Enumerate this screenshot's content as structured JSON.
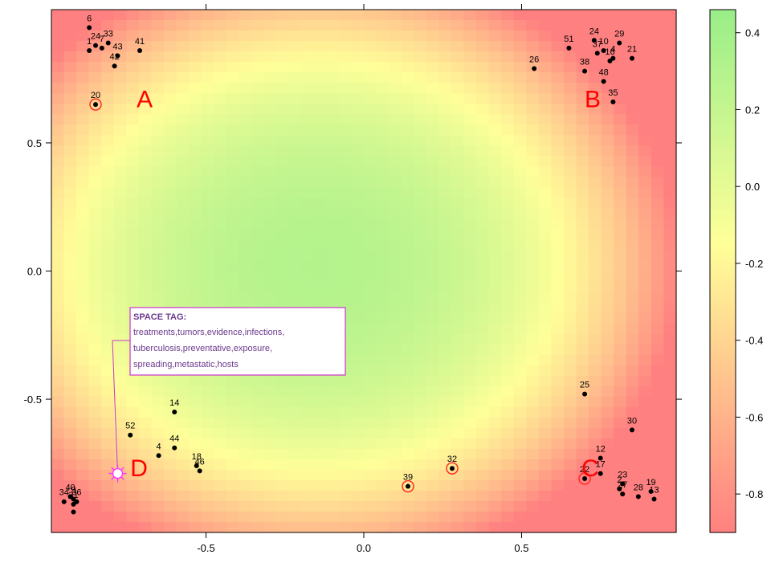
{
  "chart_data": {
    "type": "scatter",
    "xlim": [
      -0.99,
      0.99
    ],
    "ylim": [
      -1.02,
      1.02
    ],
    "x_ticks": [
      -0.5,
      0.0,
      0.5
    ],
    "x_tick_labels": [
      "-0.5",
      "0.0",
      "0.5"
    ],
    "y_ticks": [
      0.5,
      0.0,
      -0.5
    ],
    "y_tick_labels": [
      "0.5",
      "0.0",
      "-0.5"
    ],
    "grid": false,
    "background": "heatmap",
    "colorbar": {
      "ticks": [
        0.4,
        0.2,
        0.0,
        -0.2,
        -0.4,
        -0.6,
        -0.8
      ],
      "tick_labels": [
        "0.4",
        "0.2",
        "0.0",
        "-0.2",
        "-0.4",
        "-0.6",
        "-0.8"
      ],
      "range": [
        -0.9,
        0.46
      ],
      "colors": {
        "high": "#99ee88",
        "mid": "#ffff99",
        "low": "#ff8080"
      }
    },
    "points": [
      {
        "label": "6",
        "x": -0.87,
        "y": 0.95
      },
      {
        "label": "1",
        "x": -0.87,
        "y": 0.86
      },
      {
        "label": "24",
        "x": -0.85,
        "y": 0.88
      },
      {
        "label": "7",
        "x": -0.83,
        "y": 0.87
      },
      {
        "label": "33",
        "x": -0.81,
        "y": 0.89
      },
      {
        "label": "43",
        "x": -0.78,
        "y": 0.84
      },
      {
        "label": "41",
        "x": -0.71,
        "y": 0.86
      },
      {
        "label": "42",
        "x": -0.79,
        "y": 0.8
      },
      {
        "label": "20",
        "x": -0.85,
        "y": 0.65,
        "circled": true
      },
      {
        "label": "51",
        "x": 0.65,
        "y": 0.87
      },
      {
        "label": "24",
        "x": 0.73,
        "y": 0.9
      },
      {
        "label": "29",
        "x": 0.81,
        "y": 0.89
      },
      {
        "label": "37",
        "x": 0.74,
        "y": 0.85
      },
      {
        "label": "10",
        "x": 0.76,
        "y": 0.86
      },
      {
        "label": "16",
        "x": 0.78,
        "y": 0.82
      },
      {
        "label": "4",
        "x": 0.79,
        "y": 0.83
      },
      {
        "label": "21",
        "x": 0.85,
        "y": 0.83
      },
      {
        "label": "26",
        "x": 0.54,
        "y": 0.79
      },
      {
        "label": "38",
        "x": 0.7,
        "y": 0.78
      },
      {
        "label": "48",
        "x": 0.76,
        "y": 0.74
      },
      {
        "label": "35",
        "x": 0.79,
        "y": 0.66
      },
      {
        "label": "25",
        "x": 0.7,
        "y": -0.48
      },
      {
        "label": "30",
        "x": 0.85,
        "y": -0.62
      },
      {
        "label": "12",
        "x": 0.75,
        "y": -0.73
      },
      {
        "label": "17",
        "x": 0.75,
        "y": -0.79
      },
      {
        "label": "22",
        "x": 0.7,
        "y": -0.81,
        "circled": true
      },
      {
        "label": "23",
        "x": 0.82,
        "y": -0.83
      },
      {
        "label": "2",
        "x": 0.81,
        "y": -0.85
      },
      {
        "label": "27",
        "x": 0.82,
        "y": -0.87
      },
      {
        "label": "28",
        "x": 0.87,
        "y": -0.88
      },
      {
        "label": "19",
        "x": 0.91,
        "y": -0.86
      },
      {
        "label": "13",
        "x": 0.92,
        "y": -0.89
      },
      {
        "label": "32",
        "x": 0.28,
        "y": -0.77,
        "circled": true
      },
      {
        "label": "39",
        "x": 0.14,
        "y": -0.84,
        "circled": true
      },
      {
        "label": "14",
        "x": -0.6,
        "y": -0.55
      },
      {
        "label": "52",
        "x": -0.74,
        "y": -0.64
      },
      {
        "label": "44",
        "x": -0.6,
        "y": -0.69
      },
      {
        "label": "4",
        "x": -0.65,
        "y": -0.72
      },
      {
        "label": "18",
        "x": -0.53,
        "y": -0.76
      },
      {
        "label": "46",
        "x": -0.52,
        "y": -0.78
      },
      {
        "label": "40",
        "x": -0.93,
        "y": -0.88
      },
      {
        "label": "9",
        "x": -0.92,
        "y": -0.89
      },
      {
        "label": "34",
        "x": -0.95,
        "y": -0.9
      },
      {
        "label": "36",
        "x": -0.91,
        "y": -0.9
      },
      {
        "label": "31",
        "x": -0.92,
        "y": -0.91
      },
      {
        "label": "7",
        "x": -0.92,
        "y": -0.94
      }
    ],
    "cluster_labels": [
      {
        "text": "A",
        "x": -0.72,
        "y": 0.67
      },
      {
        "text": "B",
        "x": 0.7,
        "y": 0.67
      },
      {
        "text": "C",
        "x": 0.69,
        "y": -0.77
      },
      {
        "text": "D",
        "x": -0.74,
        "y": -0.77
      }
    ],
    "tag": {
      "heading": "SPACE TAG:",
      "lines": [
        "treatments,tumors,evidence,infections,",
        "tuberculosis,preventative,exposure,",
        "spreading,metastatic,hosts"
      ],
      "marker": {
        "x": -0.78,
        "y": -0.79
      },
      "colors": {
        "border": "#cc33cc",
        "marker": "#ff33ff",
        "text": "#6b3a8e"
      }
    }
  }
}
